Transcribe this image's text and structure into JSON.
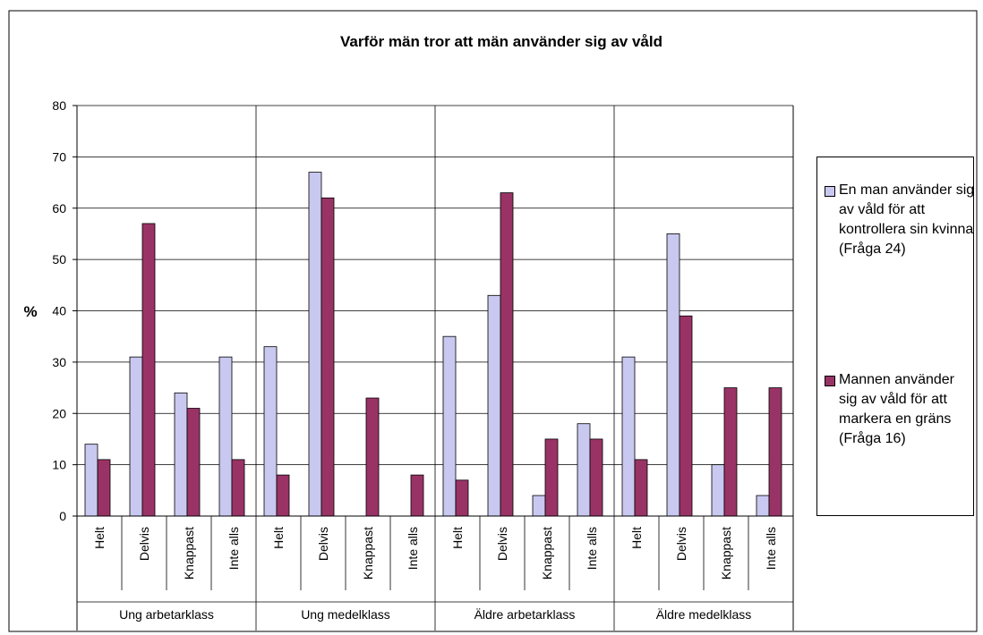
{
  "chart_data": {
    "type": "bar",
    "title": "Varför män tror att män använder sig av våld",
    "ylabel": "%",
    "groups": [
      "Ung arbetarklass",
      "Ung medelklass",
      "Äldre arbetarklass",
      "Äldre medelklass"
    ],
    "categories": [
      "Helt",
      "Delvis",
      "Knappast",
      "Inte alls",
      "Helt",
      "Delvis",
      "Knappast",
      "Inte alls",
      "Helt",
      "Delvis",
      "Knappast",
      "Inte alls",
      "Helt",
      "Delvis",
      "Knappast",
      "Inte alls"
    ],
    "series": [
      {
        "name": "En man använder sig av våld för att kontrollera sin kvinna (Fråga 24)",
        "color": "#c8c8f0",
        "values": [
          14,
          31,
          24,
          31,
          33,
          67,
          0,
          0,
          35,
          43,
          4,
          18,
          31,
          55,
          10,
          4
        ]
      },
      {
        "name": "Mannen använder sig av våld för att markera en gräns (Fråga 16)",
        "color": "#993366",
        "values": [
          11,
          57,
          21,
          11,
          8,
          62,
          23,
          8,
          7,
          63,
          15,
          15,
          11,
          39,
          25,
          25
        ]
      }
    ],
    "ylim": [
      0,
      80
    ],
    "yticks": [
      0,
      10,
      20,
      30,
      40,
      50,
      60,
      70,
      80
    ],
    "grid": true
  }
}
